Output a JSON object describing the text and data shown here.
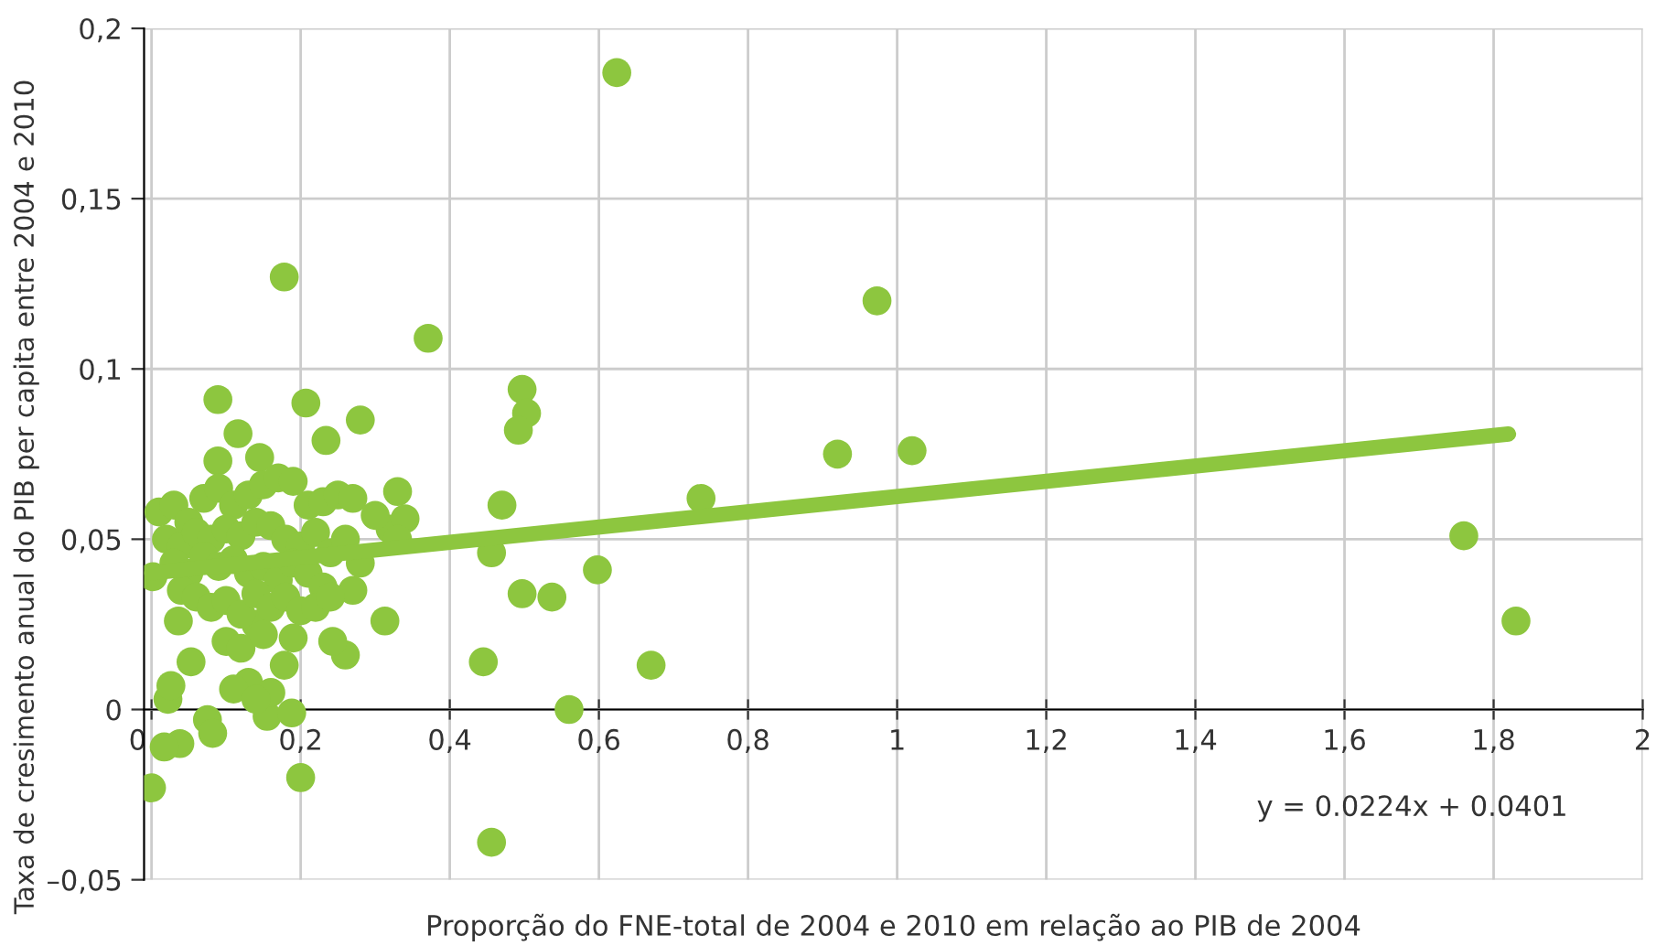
{
  "chart_data": {
    "type": "scatter",
    "xlabel": "Proporção do FNE-total de 2004 e 2010 em relação ao PIB de 2004",
    "ylabel": "Taxa de cresimento anual do PIB per capita entre 2004 e 2010",
    "xlim": [
      -0.01,
      2.0
    ],
    "ylim": [
      -0.05,
      0.2
    ],
    "xticks": [
      0,
      {
        "value": 0.2,
        "label": "0,2"
      },
      {
        "value": 0.4,
        "label": "0,4"
      },
      {
        "value": 0.6,
        "label": "0,6"
      },
      {
        "value": 0.8,
        "label": "0,8"
      },
      1,
      {
        "value": 1.2,
        "label": "1,2"
      },
      {
        "value": 1.4,
        "label": "1,4"
      },
      {
        "value": 1.6,
        "label": "1,6"
      },
      {
        "value": 1.8,
        "label": "1,8"
      },
      2
    ],
    "yticks": [
      {
        "value": -0.05,
        "label": "–0,05"
      },
      0,
      {
        "value": 0.05,
        "label": "0,05"
      },
      {
        "value": 0.1,
        "label": "0,1"
      },
      {
        "value": 0.15,
        "label": "0,15"
      },
      {
        "value": 0.2,
        "label": "0,2"
      }
    ],
    "grid": true,
    "annotations": [
      "y = 0.0224x + 0.0401"
    ],
    "series": [
      {
        "color": "#8dc63f",
        "marker": "circle",
        "x": [
          0.624,
          0.178,
          0.371,
          0.973,
          0.92,
          1.02,
          0.737,
          1.76,
          1.83,
          0.67,
          0.56,
          0.456,
          0.445,
          0.598,
          0.537,
          0.497,
          0.456,
          0.47,
          0.497,
          0.503,
          0.492,
          0.313,
          0.33,
          0.32,
          0.34,
          0.33,
          0.089,
          0.207,
          0.28,
          0.116,
          0.234,
          0.089,
          0.145,
          0.053,
          0.022,
          0.026,
          0.075,
          0.082,
          0.038,
          0.017,
          0.0,
          0.155,
          0.188,
          0.2,
          0.26,
          0.243,
          0.178,
          0.14,
          0.036,
          0.002,
          0.01,
          0.03,
          0.05,
          0.07,
          0.09,
          0.11,
          0.13,
          0.15,
          0.17,
          0.19,
          0.21,
          0.23,
          0.25,
          0.27,
          0.3,
          0.02,
          0.04,
          0.06,
          0.08,
          0.1,
          0.12,
          0.14,
          0.16,
          0.18,
          0.2,
          0.22,
          0.24,
          0.26,
          0.28,
          0.03,
          0.05,
          0.07,
          0.09,
          0.11,
          0.13,
          0.15,
          0.17,
          0.19,
          0.21,
          0.23,
          0.27,
          0.04,
          0.06,
          0.08,
          0.1,
          0.12,
          0.14,
          0.16,
          0.18,
          0.2,
          0.22,
          0.24,
          0.1,
          0.12,
          0.15,
          0.19,
          0.13,
          0.11,
          0.16,
          0.14
        ],
        "values": [
          0.187,
          0.127,
          0.109,
          0.12,
          0.075,
          0.076,
          0.062,
          0.051,
          0.026,
          0.013,
          0.0,
          -0.039,
          0.014,
          0.041,
          0.033,
          0.034,
          0.046,
          0.06,
          0.094,
          0.087,
          0.082,
          0.026,
          0.064,
          0.053,
          0.056,
          0.05,
          0.091,
          0.09,
          0.085,
          0.081,
          0.079,
          0.073,
          0.074,
          0.014,
          0.003,
          0.007,
          -0.003,
          -0.007,
          -0.01,
          -0.011,
          -0.023,
          -0.002,
          -0.001,
          -0.02,
          0.016,
          0.02,
          0.013,
          0.025,
          0.026,
          0.039,
          0.058,
          0.06,
          0.055,
          0.062,
          0.065,
          0.06,
          0.063,
          0.066,
          0.068,
          0.067,
          0.06,
          0.061,
          0.063,
          0.062,
          0.057,
          0.05,
          0.048,
          0.052,
          0.05,
          0.053,
          0.051,
          0.055,
          0.054,
          0.05,
          0.048,
          0.052,
          0.046,
          0.05,
          0.043,
          0.043,
          0.04,
          0.045,
          0.042,
          0.044,
          0.04,
          0.042,
          0.038,
          0.043,
          0.04,
          0.036,
          0.035,
          0.035,
          0.033,
          0.03,
          0.032,
          0.028,
          0.034,
          0.03,
          0.033,
          0.029,
          0.03,
          0.033,
          0.02,
          0.018,
          0.022,
          0.021,
          0.008,
          0.006,
          0.005,
          0.003
        ]
      },
      {
        "type": "line",
        "color": "#8dc63f",
        "x": [
          0,
          1.82
        ],
        "values": [
          0.0401,
          0.0809
        ]
      }
    ]
  }
}
